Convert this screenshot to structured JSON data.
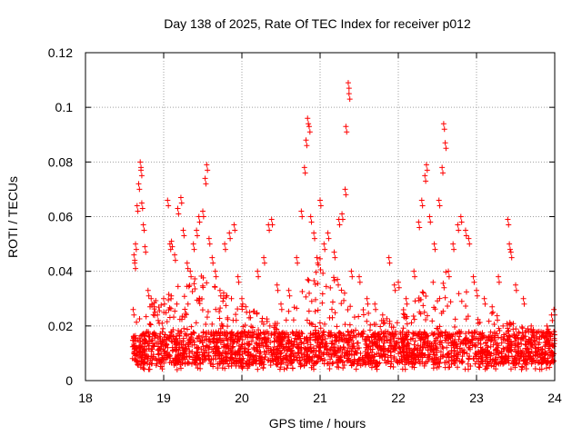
{
  "chart_data": {
    "type": "scatter",
    "title": "Day 138 of 2025, Rate Of TEC Index for receiver p012",
    "xlabel": "GPS time / hours",
    "ylabel": "ROTI / TECUs",
    "xlim": [
      18,
      24
    ],
    "ylim": [
      0,
      0.12
    ],
    "x_ticks": [
      "18",
      "19",
      "20",
      "21",
      "22",
      "23",
      "24"
    ],
    "y_ticks": [
      "0",
      "0.02",
      "0.04",
      "0.06",
      "0.08",
      "0.1",
      "0.12"
    ],
    "grid": true,
    "marker": "+",
    "marker_color": "#ff0000",
    "series": [
      {
        "points": [
          [
            18.61,
            0.026
          ],
          [
            18.62,
            0.046
          ],
          [
            18.63,
            0.043
          ],
          [
            18.64,
            0.05
          ],
          [
            18.66,
            0.064
          ],
          [
            18.68,
            0.072
          ],
          [
            18.7,
            0.08
          ],
          [
            18.71,
            0.077
          ],
          [
            18.72,
            0.065
          ],
          [
            18.74,
            0.057
          ],
          [
            18.76,
            0.049
          ],
          [
            18.8,
            0.033
          ],
          [
            18.84,
            0.03
          ],
          [
            18.88,
            0.027
          ],
          [
            18.92,
            0.024
          ],
          [
            18.98,
            0.021
          ],
          [
            19.0,
            0.03
          ],
          [
            19.05,
            0.066
          ],
          [
            19.08,
            0.05
          ],
          [
            19.1,
            0.051
          ],
          [
            19.14,
            0.046
          ],
          [
            19.18,
            0.063
          ],
          [
            19.22,
            0.067
          ],
          [
            19.25,
            0.055
          ],
          [
            19.3,
            0.043
          ],
          [
            19.34,
            0.04
          ],
          [
            19.38,
            0.05
          ],
          [
            19.42,
            0.055
          ],
          [
            19.45,
            0.06
          ],
          [
            19.5,
            0.062
          ],
          [
            19.53,
            0.074
          ],
          [
            19.55,
            0.079
          ],
          [
            19.58,
            0.052
          ],
          [
            19.62,
            0.045
          ],
          [
            19.66,
            0.04
          ],
          [
            19.72,
            0.033
          ],
          [
            19.78,
            0.05
          ],
          [
            19.84,
            0.054
          ],
          [
            19.9,
            0.057
          ],
          [
            19.95,
            0.038
          ],
          [
            20.0,
            0.03
          ],
          [
            20.05,
            0.027
          ],
          [
            20.1,
            0.025
          ],
          [
            20.2,
            0.04
          ],
          [
            20.28,
            0.045
          ],
          [
            20.34,
            0.057
          ],
          [
            20.38,
            0.059
          ],
          [
            20.45,
            0.035
          ],
          [
            20.5,
            0.028
          ],
          [
            20.6,
            0.033
          ],
          [
            20.7,
            0.045
          ],
          [
            20.76,
            0.062
          ],
          [
            20.8,
            0.078
          ],
          [
            20.82,
            0.088
          ],
          [
            20.84,
            0.096
          ],
          [
            20.86,
            0.093
          ],
          [
            20.88,
            0.06
          ],
          [
            20.92,
            0.054
          ],
          [
            20.96,
            0.045
          ],
          [
            21.0,
            0.066
          ],
          [
            21.05,
            0.05
          ],
          [
            21.1,
            0.054
          ],
          [
            21.18,
            0.047
          ],
          [
            21.24,
            0.059
          ],
          [
            21.28,
            0.061
          ],
          [
            21.32,
            0.07
          ],
          [
            21.33,
            0.093
          ],
          [
            21.36,
            0.109
          ],
          [
            21.37,
            0.105
          ],
          [
            21.4,
            0.04
          ],
          [
            21.5,
            0.038
          ],
          [
            21.6,
            0.03
          ],
          [
            21.7,
            0.028
          ],
          [
            21.8,
            0.024
          ],
          [
            21.88,
            0.045
          ],
          [
            21.95,
            0.035
          ],
          [
            22.0,
            0.036
          ],
          [
            22.1,
            0.03
          ],
          [
            22.2,
            0.04
          ],
          [
            22.26,
            0.058
          ],
          [
            22.3,
            0.066
          ],
          [
            22.34,
            0.075
          ],
          [
            22.36,
            0.079
          ],
          [
            22.4,
            0.06
          ],
          [
            22.46,
            0.05
          ],
          [
            22.52,
            0.066
          ],
          [
            22.56,
            0.078
          ],
          [
            22.58,
            0.094
          ],
          [
            22.6,
            0.087
          ],
          [
            22.64,
            0.04
          ],
          [
            22.7,
            0.05
          ],
          [
            22.76,
            0.057
          ],
          [
            22.8,
            0.06
          ],
          [
            22.86,
            0.055
          ],
          [
            22.9,
            0.052
          ],
          [
            22.96,
            0.038
          ],
          [
            23.0,
            0.033
          ],
          [
            23.1,
            0.03
          ],
          [
            23.2,
            0.027
          ],
          [
            23.28,
            0.038
          ],
          [
            23.4,
            0.059
          ],
          [
            23.42,
            0.05
          ],
          [
            23.44,
            0.047
          ],
          [
            23.5,
            0.035
          ],
          [
            23.6,
            0.03
          ],
          [
            23.7,
            0.02
          ],
          [
            23.8,
            0.018
          ],
          [
            23.9,
            0.02
          ],
          [
            23.96,
            0.024
          ],
          [
            23.99,
            0.026
          ]
        ]
      }
    ],
    "dense_band": {
      "x_range": [
        18.6,
        24.0
      ],
      "y_min": 0.004,
      "y_typical": [
        0.006,
        0.018
      ],
      "y_upper_envelope": [
        [
          18.6,
          0.02
        ],
        [
          18.9,
          0.03
        ],
        [
          19.2,
          0.035
        ],
        [
          19.5,
          0.04
        ],
        [
          19.8,
          0.032
        ],
        [
          20.0,
          0.028
        ],
        [
          20.2,
          0.025
        ],
        [
          20.5,
          0.022
        ],
        [
          20.8,
          0.035
        ],
        [
          21.0,
          0.045
        ],
        [
          21.2,
          0.04
        ],
        [
          21.4,
          0.03
        ],
        [
          21.6,
          0.025
        ],
        [
          21.8,
          0.022
        ],
        [
          22.0,
          0.025
        ],
        [
          22.2,
          0.03
        ],
        [
          22.4,
          0.035
        ],
        [
          22.6,
          0.04
        ],
        [
          22.8,
          0.035
        ],
        [
          23.0,
          0.03
        ],
        [
          23.2,
          0.025
        ],
        [
          23.4,
          0.022
        ],
        [
          23.6,
          0.02
        ],
        [
          23.8,
          0.018
        ],
        [
          24.0,
          0.02
        ]
      ]
    }
  }
}
